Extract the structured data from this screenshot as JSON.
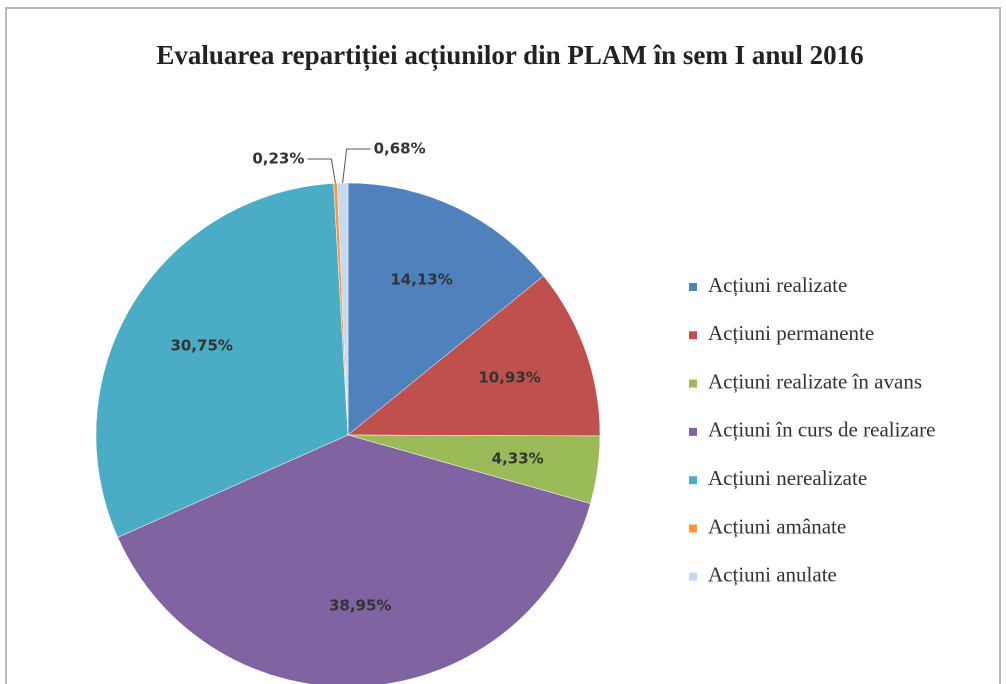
{
  "chart_data": {
    "type": "pie",
    "title": "Evaluarea repartiției acțiunilor din PLAM în sem I anul 2016",
    "categories": [
      "Acțiuni realizate",
      "Acțiuni permanente",
      "Acțiuni realizate în avans",
      "Acțiuni în curs de realizare",
      "Acțiuni nerealizate",
      "Acțiuni amânate",
      "Acțiuni anulate"
    ],
    "values": [
      14.13,
      10.93,
      4.33,
      38.95,
      30.75,
      0.23,
      0.68
    ],
    "value_labels": [
      "14,13%",
      "10,93%",
      "4,33%",
      "38,95%",
      "30,75%",
      "0,23%",
      "0,68%"
    ],
    "colors": [
      "#4f81bd",
      "#c0504d",
      "#9bbb59",
      "#8064a2",
      "#4bacc6",
      "#f79646",
      "#c6d9f1"
    ],
    "legend": "right"
  }
}
